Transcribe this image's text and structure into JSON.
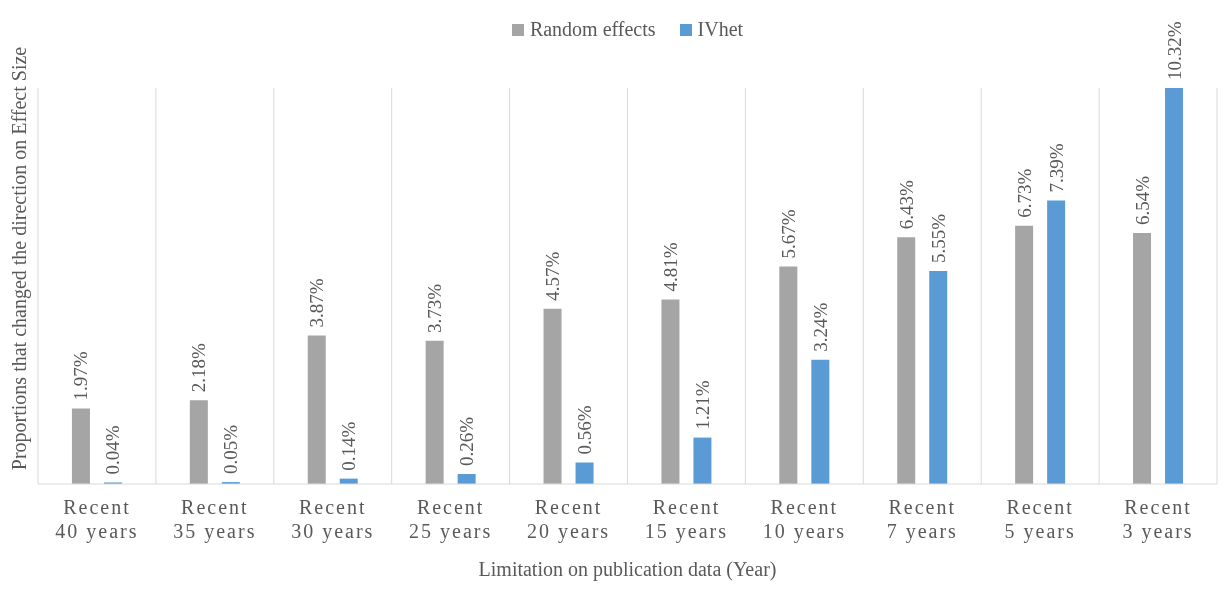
{
  "chart_data": {
    "type": "bar",
    "xlabel": "Limitation on publication data (Year)",
    "ylabel": "Proportions that changed the direction on Effect Size",
    "categories": [
      "Recent 40 years",
      "Recent 35 years",
      "Recent 30 years",
      "Recent 25 years",
      "Recent 20 years",
      "Recent 15 years",
      "Recent 10 years",
      "Recent 7 years",
      "Recent 5 years",
      "Recent 3 years"
    ],
    "grid": "x",
    "legend": "top",
    "series": [
      {
        "name": "Random effects",
        "color": "#a5a5a5",
        "values": [
          1.97,
          2.18,
          3.87,
          3.73,
          4.57,
          4.81,
          5.67,
          6.43,
          6.73,
          6.54
        ],
        "value_labels": [
          "1.97%",
          "2.18%",
          "3.87%",
          "3.73%",
          "4.57%",
          "4.81%",
          "5.67%",
          "6.43%",
          "6.73%",
          "6.54%"
        ]
      },
      {
        "name": "IVhet",
        "color": "#5b9bd5",
        "values": [
          0.04,
          0.05,
          0.14,
          0.26,
          0.56,
          1.21,
          3.24,
          5.55,
          7.39,
          10.32
        ],
        "value_labels": [
          "0.04%",
          "0.05%",
          "0.14%",
          "0.26%",
          "0.56%",
          "1.21%",
          "3.24%",
          "5.55%",
          "7.39%",
          "10.32%"
        ]
      }
    ]
  }
}
